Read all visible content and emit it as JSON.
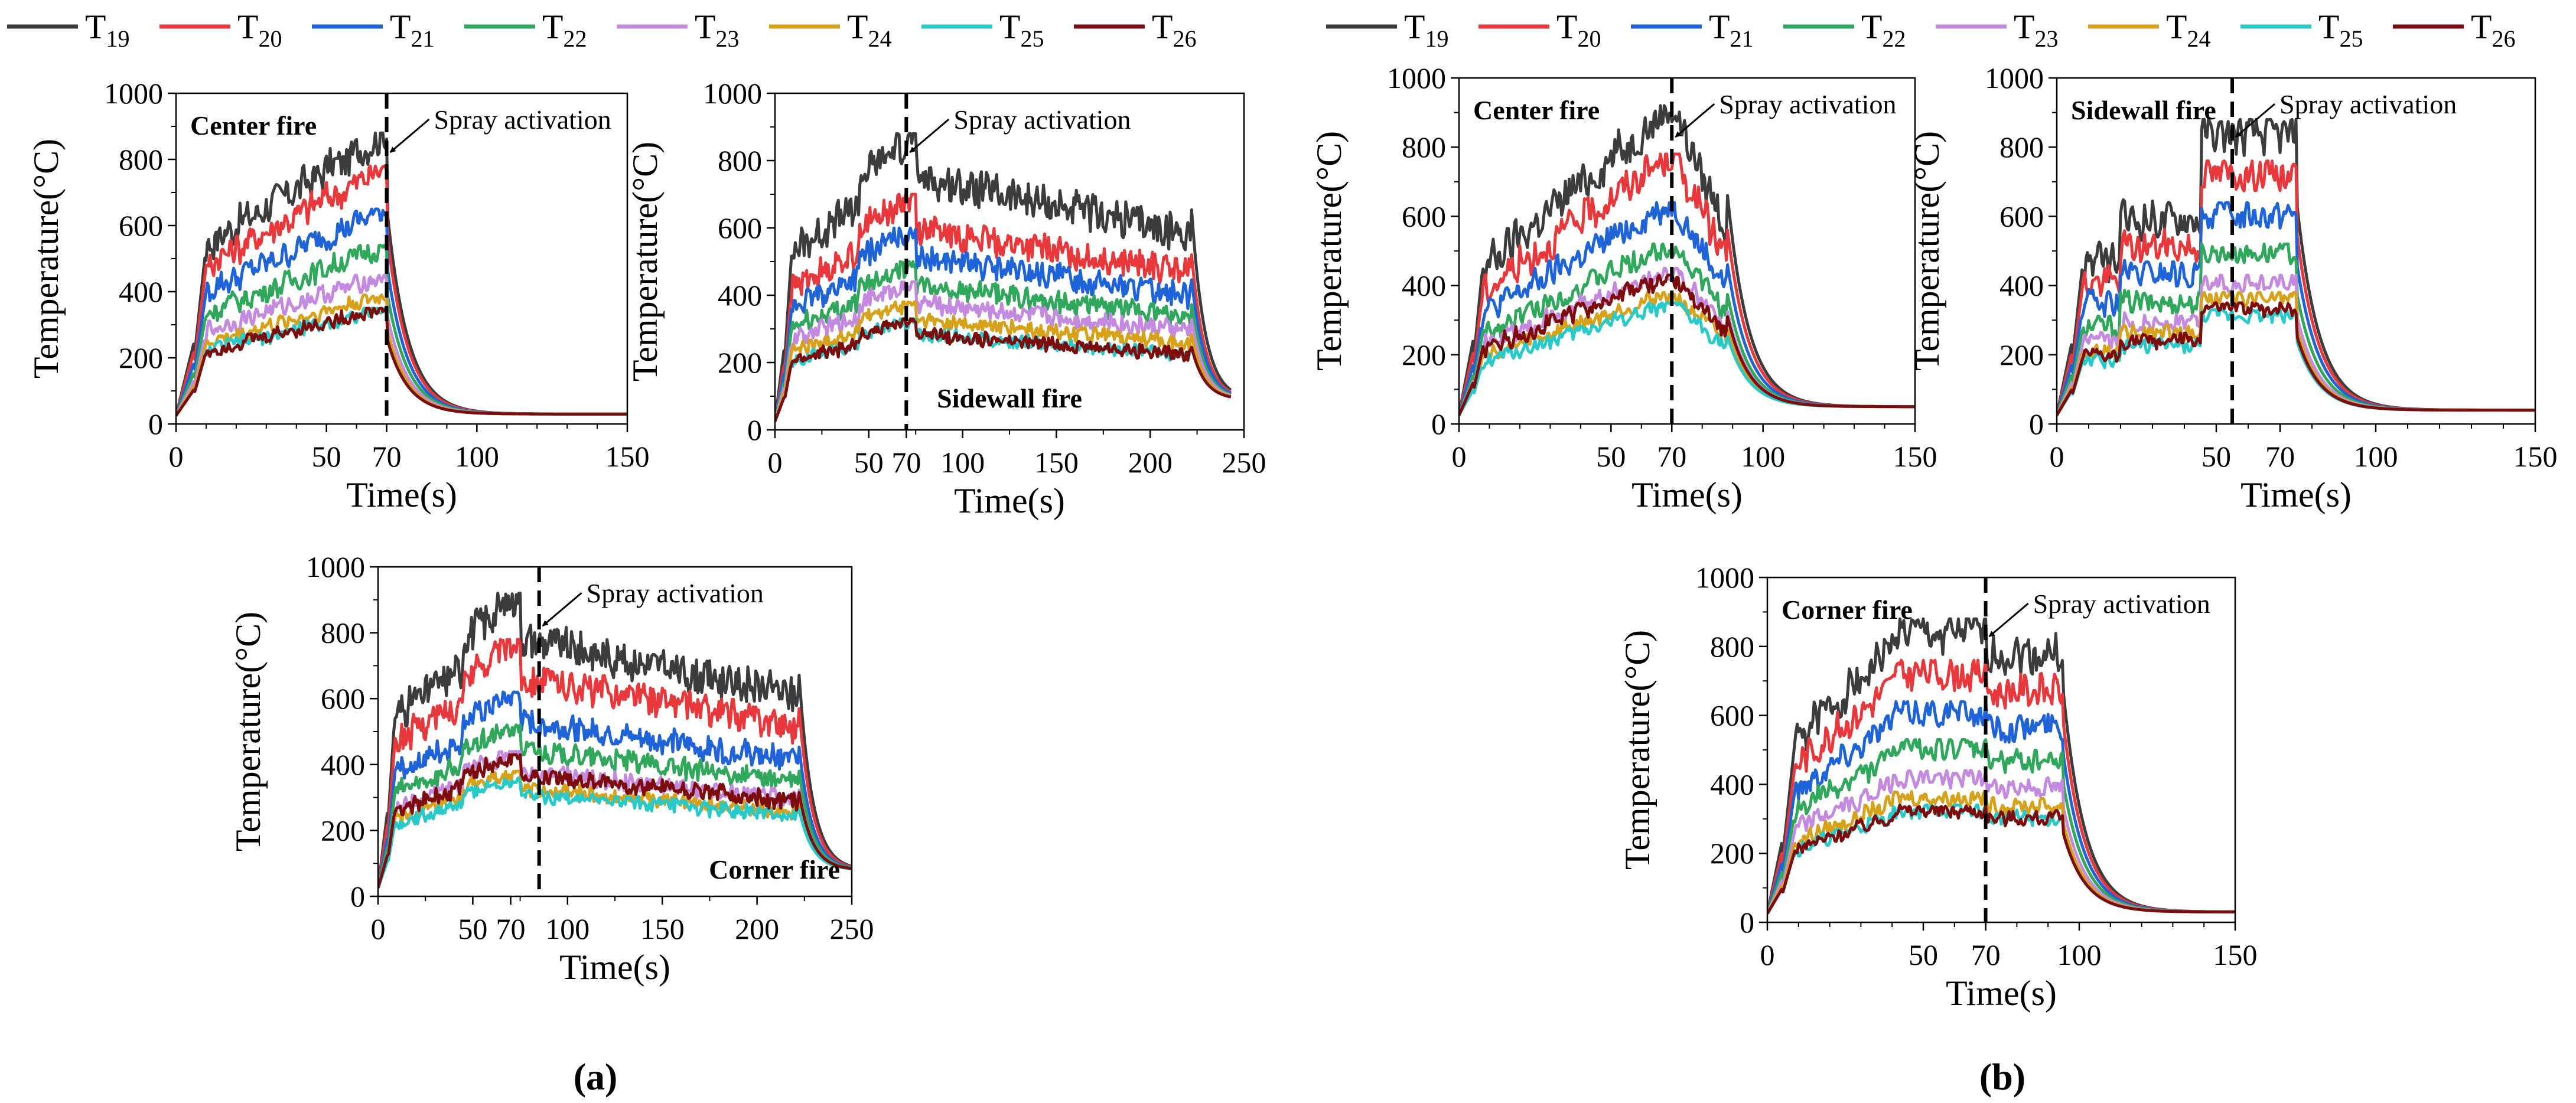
{
  "figure": {
    "panel_labels": {
      "a": "(a)",
      "b": "(b)"
    }
  },
  "legend": {
    "entries": [
      {
        "base": "T",
        "sub": "19",
        "color": "#3c3c3c"
      },
      {
        "base": "T",
        "sub": "20",
        "color": "#e8383b"
      },
      {
        "base": "T",
        "sub": "21",
        "color": "#1f63d8"
      },
      {
        "base": "T",
        "sub": "22",
        "color": "#2fa85c"
      },
      {
        "base": "T",
        "sub": "23",
        "color": "#c38ae0"
      },
      {
        "base": "T",
        "sub": "24",
        "color": "#d7a21a"
      },
      {
        "base": "T",
        "sub": "25",
        "color": "#28c9c9"
      },
      {
        "base": "T",
        "sub": "26",
        "color": "#7d0c0c"
      }
    ]
  },
  "chart_data": [
    {
      "id": "a-center",
      "type": "line",
      "title": "Center fire",
      "title_pos": "top-left",
      "xlabel": "Time(s)",
      "ylabel": "Temperature(°C)",
      "xlim": [
        0,
        150
      ],
      "ylim": [
        0,
        1000
      ],
      "xticks": [
        0,
        50,
        70,
        100,
        150
      ],
      "yticks": [
        0,
        200,
        400,
        600,
        800,
        1000
      ],
      "annotation": {
        "text": "Spray activation",
        "x": 70
      },
      "t_on": 6,
      "t_off": 70,
      "t_end": 150,
      "peaks": [
        880,
        780,
        650,
        540,
        450,
        390,
        350,
        350
      ],
      "final": 30,
      "style": "ramp"
    },
    {
      "id": "a-sidewall",
      "type": "line",
      "title": "Sidewall fire",
      "title_pos": "bottom-center",
      "xlabel": "Time(s)",
      "ylabel": "Temperature(°C)",
      "xlim": [
        0,
        250
      ],
      "ylim": [
        0,
        1000
      ],
      "xticks": [
        0,
        50,
        70,
        100,
        150,
        200,
        250
      ],
      "yticks": [
        0,
        200,
        400,
        600,
        800,
        1000
      ],
      "annotation": {
        "text": "Spray activation",
        "x": 70
      },
      "t_on": 5,
      "t_off": 222,
      "t_end": 243,
      "peaks": [
        880,
        700,
        600,
        500,
        440,
        380,
        330,
        330
      ],
      "final": 90,
      "style": "long"
    },
    {
      "id": "a-corner",
      "type": "line",
      "title": "Corner fire",
      "title_pos": "bottom-right",
      "xlabel": "Time(s)",
      "ylabel": "Temperature(°C)",
      "xlim": [
        0,
        250
      ],
      "ylim": [
        0,
        1000
      ],
      "xticks": [
        0,
        50,
        70,
        100,
        150,
        200,
        250
      ],
      "yticks": [
        0,
        200,
        400,
        600,
        800,
        1000
      ],
      "annotation": {
        "text": "Spray activation",
        "x": 85
      },
      "t_on": 5,
      "t_off": 222,
      "t_end": 250,
      "peaks": [
        920,
        780,
        620,
        520,
        440,
        380,
        360,
        430
      ],
      "final": 80,
      "style": "long"
    },
    {
      "id": "b-center",
      "type": "line",
      "title": "Center fire",
      "title_pos": "top-left",
      "xlabel": "Time(s)",
      "ylabel": "Temperature(°C)",
      "xlim": [
        0,
        150
      ],
      "ylim": [
        0,
        1000
      ],
      "xticks": [
        0,
        50,
        70,
        100,
        150
      ],
      "yticks": [
        0,
        200,
        400,
        600,
        800,
        1000
      ],
      "annotation": {
        "text": "Spray activation",
        "x": 70
      },
      "t_on": 5,
      "t_off": 88,
      "t_end": 150,
      "peaks": [
        920,
        780,
        640,
        520,
        450,
        380,
        350,
        430
      ],
      "final": 50,
      "style": "peak"
    },
    {
      "id": "b-sidewall",
      "type": "line",
      "title": "Sidewall fire",
      "title_pos": "top-left",
      "xlabel": "Time(s)",
      "ylabel": "Temperature(°C)",
      "xlim": [
        0,
        150
      ],
      "ylim": [
        0,
        1000
      ],
      "xticks": [
        0,
        50,
        70,
        100,
        150
      ],
      "yticks": [
        0,
        200,
        400,
        600,
        800,
        1000
      ],
      "annotation": {
        "text": "Spray activation",
        "x": 55
      },
      "t_on": 5,
      "t_off": 75,
      "t_end": 150,
      "peaks": [
        880,
        760,
        640,
        520,
        430,
        380,
        330,
        350
      ],
      "final": 40,
      "style": "steps"
    },
    {
      "id": "b-corner",
      "type": "line",
      "title": "Corner fire",
      "title_pos": "top-left",
      "xlabel": "Time(s)",
      "ylabel": "Temperature(°C)",
      "xlim": [
        0,
        150
      ],
      "ylim": [
        0,
        1000
      ],
      "xticks": [
        0,
        50,
        70,
        100,
        150
      ],
      "yticks": [
        0,
        200,
        400,
        600,
        800,
        1000
      ],
      "annotation": {
        "text": "Spray activation",
        "x": 70
      },
      "t_on": 5,
      "t_off": 95,
      "t_end": 150,
      "peaks": [
        880,
        760,
        640,
        530,
        440,
        380,
        340,
        340
      ],
      "final": 30,
      "style": "plateau"
    }
  ]
}
